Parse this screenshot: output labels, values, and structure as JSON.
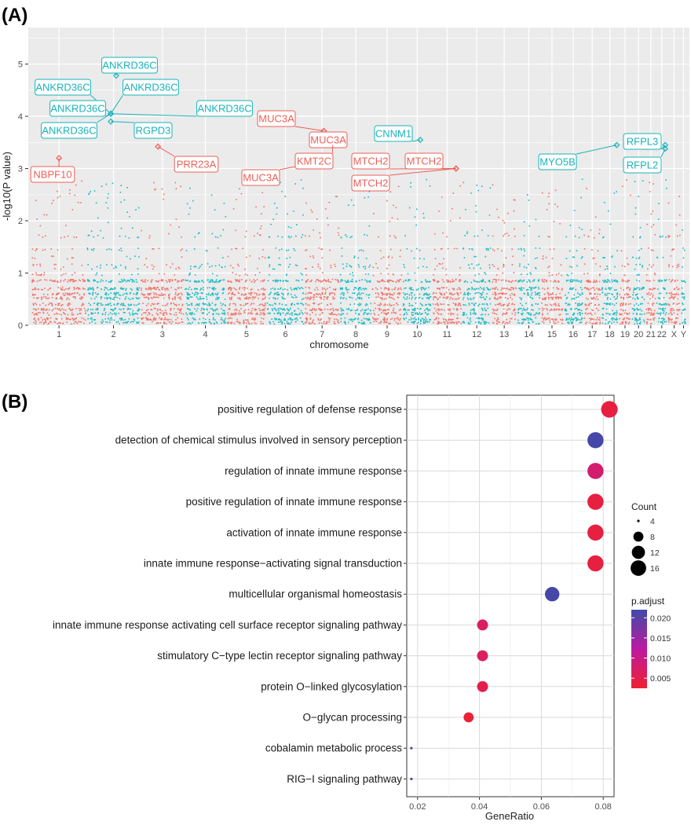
{
  "chart_data": [
    {
      "panel": "(A)",
      "type": "scatter",
      "subtype": "manhattan",
      "xlabel": "chromosome",
      "ylabel": "-log10(P value)",
      "ylim": [
        0,
        5.7
      ],
      "yticks": [
        0,
        1,
        2,
        3,
        4,
        5
      ],
      "colors": {
        "odd": "#f4756c",
        "even": "#1fbec5"
      },
      "chromosomes": [
        {
          "label": "1",
          "length": 249
        },
        {
          "label": "2",
          "length": 243
        },
        {
          "label": "3",
          "length": 198
        },
        {
          "label": "4",
          "length": 190
        },
        {
          "label": "5",
          "length": 181
        },
        {
          "label": "6",
          "length": 171
        },
        {
          "label": "7",
          "length": 159
        },
        {
          "label": "8",
          "length": 145
        },
        {
          "label": "9",
          "length": 138
        },
        {
          "label": "10",
          "length": 134
        },
        {
          "label": "11",
          "length": 135
        },
        {
          "label": "12",
          "length": 133
        },
        {
          "label": "13",
          "length": 115
        },
        {
          "label": "14",
          "length": 107
        },
        {
          "label": "15",
          "length": 102
        },
        {
          "label": "16",
          "length": 90
        },
        {
          "label": "17",
          "length": 81
        },
        {
          "label": "18",
          "length": 78
        },
        {
          "label": "19",
          "length": 59
        },
        {
          "label": "20",
          "length": 63
        },
        {
          "label": "21",
          "length": 48
        },
        {
          "label": "22",
          "length": 51
        },
        {
          "label": "X",
          "length": 60
        },
        {
          "label": "Y",
          "length": 25
        }
      ],
      "highlighted_genes": [
        {
          "label": "ANKRD36C",
          "chrom": "2",
          "y": 4.78,
          "color": "teal"
        },
        {
          "label": "ANKRD36C",
          "chrom": "2",
          "y": 4.05,
          "color": "teal"
        },
        {
          "label": "ANKRD36C",
          "chrom": "2",
          "y": 4.05,
          "color": "teal"
        },
        {
          "label": "ANKRD36C",
          "chrom": "2",
          "y": 4.05,
          "color": "teal"
        },
        {
          "label": "ANKRD36C",
          "chrom": "2",
          "y": 4.05,
          "color": "teal"
        },
        {
          "label": "ANKRD36C",
          "chrom": "2",
          "y": 4.05,
          "color": "teal"
        },
        {
          "label": "RGPD3",
          "chrom": "2",
          "y": 3.9,
          "color": "teal"
        },
        {
          "label": "NBPF10",
          "chrom": "1",
          "y": 3.2,
          "color": "red"
        },
        {
          "label": "PRR23A",
          "chrom": "3",
          "y": 3.42,
          "color": "red"
        },
        {
          "label": "MUC3A",
          "chrom": "7",
          "y": 3.72,
          "color": "red"
        },
        {
          "label": "MUC3A",
          "chrom": "7",
          "y": 3.72,
          "color": "red"
        },
        {
          "label": "MUC3A",
          "chrom": "7",
          "y": 3.13,
          "color": "red"
        },
        {
          "label": "KMT2C",
          "chrom": "7",
          "y": 3.45,
          "color": "red"
        },
        {
          "label": "CNNM1",
          "chrom": "10",
          "y": 3.55,
          "color": "teal"
        },
        {
          "label": "MTCH2",
          "chrom": "11",
          "y": 3.0,
          "color": "red"
        },
        {
          "label": "MTCH2",
          "chrom": "11",
          "y": 3.0,
          "color": "red"
        },
        {
          "label": "MTCH2",
          "chrom": "11",
          "y": 3.0,
          "color": "red"
        },
        {
          "label": "MYO5B",
          "chrom": "18",
          "y": 3.45,
          "color": "teal"
        },
        {
          "label": "RFPL3",
          "chrom": "22",
          "y": 3.45,
          "color": "teal"
        },
        {
          "label": "RFPL2",
          "chrom": "22",
          "y": 3.38,
          "color": "teal"
        }
      ]
    },
    {
      "panel": "(B)",
      "type": "scatter",
      "subtype": "dotplot",
      "xlabel": "GeneRatio",
      "ylabel": "",
      "xlim": [
        0.0165,
        0.0835
      ],
      "xticks": [
        0.02,
        0.04,
        0.06,
        0.08
      ],
      "xtick_labels": [
        "0.02",
        "0.04",
        "0.06",
        "0.08"
      ],
      "terms": [
        {
          "label": "positive regulation of defense response",
          "gene_ratio": 0.082,
          "count": 18,
          "p_adjust": 0.004
        },
        {
          "label": "detection of chemical stimulus involved in sensory perception",
          "gene_ratio": 0.0775,
          "count": 17,
          "p_adjust": 0.0215
        },
        {
          "label": "regulation of innate immune response",
          "gene_ratio": 0.0775,
          "count": 17,
          "p_adjust": 0.008
        },
        {
          "label": "positive regulation of innate immune response",
          "gene_ratio": 0.0775,
          "count": 17,
          "p_adjust": 0.004
        },
        {
          "label": "activation of innate immune response",
          "gene_ratio": 0.0775,
          "count": 17,
          "p_adjust": 0.004
        },
        {
          "label": "innate immune response−activating signal transduction",
          "gene_ratio": 0.0775,
          "count": 17,
          "p_adjust": 0.004
        },
        {
          "label": "multicellular organismal homeostasis",
          "gene_ratio": 0.0635,
          "count": 14,
          "p_adjust": 0.0215
        },
        {
          "label": "innate immune response activating cell surface receptor signaling pathway",
          "gene_ratio": 0.041,
          "count": 9,
          "p_adjust": 0.0065
        },
        {
          "label": "stimulatory C−type lectin receptor signaling pathway",
          "gene_ratio": 0.041,
          "count": 9,
          "p_adjust": 0.0065
        },
        {
          "label": "protein O−linked glycosylation",
          "gene_ratio": 0.041,
          "count": 9,
          "p_adjust": 0.005
        },
        {
          "label": "O−glycan processing",
          "gene_ratio": 0.0365,
          "count": 8,
          "p_adjust": 0.003
        },
        {
          "label": "cobalamin metabolic process",
          "gene_ratio": 0.018,
          "count": 4,
          "p_adjust": 0.0215
        },
        {
          "label": "RIG−I signaling pathway",
          "gene_ratio": 0.018,
          "count": 4,
          "p_adjust": 0.0215
        }
      ],
      "legend_size": {
        "title": "Count",
        "values": [
          4,
          8,
          12,
          16
        ],
        "labels": [
          "4",
          "8",
          "12",
          "16"
        ]
      },
      "legend_color": {
        "title": "p.adjust",
        "range": [
          0.0025,
          0.022
        ],
        "ticks": [
          0.02,
          0.015,
          0.01,
          0.005
        ],
        "tick_labels": [
          "0.020",
          "0.015",
          "0.010",
          "0.005"
        ],
        "low_color": "#ef2030",
        "mid_color": "#bb1aa0",
        "high_color": "#3f4ba8"
      }
    }
  ]
}
